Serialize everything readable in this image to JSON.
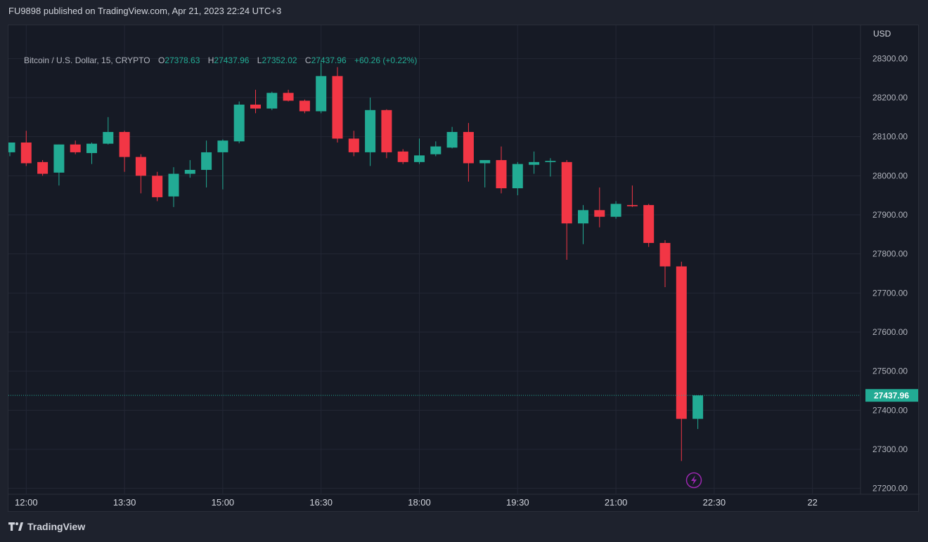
{
  "header": {
    "published": "FU9898 published on TradingView.com, Apr 21, 2023 22:24 UTC+3"
  },
  "legend": {
    "symbol": "Bitcoin / U.S. Dollar, 15, CRYPTO",
    "o_label": "O",
    "o_value": "27378.63",
    "h_label": "H",
    "h_value": "27437.96",
    "l_label": "L",
    "l_value": "27352.02",
    "c_label": "C",
    "c_value": "27437.96",
    "change": "+60.26 (+0.22%)"
  },
  "footer": {
    "brand": "TradingView",
    "logo_icon": "tradingview-logo-icon"
  },
  "colors": {
    "up": "#22ab94",
    "down": "#f23645",
    "lastPrice": "#22ab94",
    "grid": "#232735",
    "text": "#b2b5be"
  },
  "chart_data": {
    "type": "candlestick",
    "currency_label": "USD",
    "interval_minutes": 15,
    "x_start": "11:45",
    "x_ticks": [
      {
        "label": "12:00",
        "offset_bars": 1
      },
      {
        "label": "13:30",
        "offset_bars": 7
      },
      {
        "label": "15:00",
        "offset_bars": 13
      },
      {
        "label": "16:30",
        "offset_bars": 19
      },
      {
        "label": "18:00",
        "offset_bars": 25
      },
      {
        "label": "19:30",
        "offset_bars": 31
      },
      {
        "label": "21:00",
        "offset_bars": 37
      },
      {
        "label": "22:30",
        "offset_bars": 43
      },
      {
        "label": "22",
        "offset_bars": 49
      }
    ],
    "y_ticks": [
      27200,
      27300,
      27400,
      27500,
      27600,
      27700,
      27800,
      27900,
      28000,
      28100,
      28200,
      28300
    ],
    "ylim": [
      27185,
      28385
    ],
    "last_price": 27437.96,
    "last_price_label": "27437.96",
    "candles": [
      {
        "o": 28060,
        "h": 28085,
        "l": 28050,
        "c": 28085
      },
      {
        "o": 28085,
        "h": 28115,
        "l": 28025,
        "c": 28032
      },
      {
        "o": 28035,
        "h": 28040,
        "l": 28000,
        "c": 28005
      },
      {
        "o": 28008,
        "h": 28080,
        "l": 27975,
        "c": 28080
      },
      {
        "o": 28080,
        "h": 28090,
        "l": 28055,
        "c": 28060
      },
      {
        "o": 28058,
        "h": 28085,
        "l": 28030,
        "c": 28082
      },
      {
        "o": 28082,
        "h": 28150,
        "l": 28080,
        "c": 28112
      },
      {
        "o": 28112,
        "h": 28115,
        "l": 28010,
        "c": 28048
      },
      {
        "o": 28048,
        "h": 28055,
        "l": 27955,
        "c": 28000
      },
      {
        "o": 28000,
        "h": 28010,
        "l": 27935,
        "c": 27945
      },
      {
        "o": 27947,
        "h": 28022,
        "l": 27920,
        "c": 28005
      },
      {
        "o": 28005,
        "h": 28040,
        "l": 27995,
        "c": 28015
      },
      {
        "o": 28015,
        "h": 28090,
        "l": 27970,
        "c": 28060
      },
      {
        "o": 28060,
        "h": 28093,
        "l": 27965,
        "c": 28090
      },
      {
        "o": 28088,
        "h": 28190,
        "l": 28083,
        "c": 28182
      },
      {
        "o": 28182,
        "h": 28220,
        "l": 28160,
        "c": 28172
      },
      {
        "o": 28172,
        "h": 28215,
        "l": 28168,
        "c": 28212
      },
      {
        "o": 28212,
        "h": 28220,
        "l": 28190,
        "c": 28192
      },
      {
        "o": 28192,
        "h": 28195,
        "l": 28160,
        "c": 28165
      },
      {
        "o": 28165,
        "h": 28290,
        "l": 28160,
        "c": 28255
      },
      {
        "o": 28255,
        "h": 28278,
        "l": 28085,
        "c": 28095
      },
      {
        "o": 28095,
        "h": 28115,
        "l": 28050,
        "c": 28060
      },
      {
        "o": 28060,
        "h": 28200,
        "l": 28025,
        "c": 28168
      },
      {
        "o": 28168,
        "h": 28170,
        "l": 28045,
        "c": 28060
      },
      {
        "o": 28062,
        "h": 28068,
        "l": 28030,
        "c": 28035
      },
      {
        "o": 28035,
        "h": 28095,
        "l": 28030,
        "c": 28052
      },
      {
        "o": 28055,
        "h": 28088,
        "l": 28050,
        "c": 28075
      },
      {
        "o": 28072,
        "h": 28125,
        "l": 28070,
        "c": 28112
      },
      {
        "o": 28112,
        "h": 28135,
        "l": 27985,
        "c": 28032
      },
      {
        "o": 28032,
        "h": 28040,
        "l": 27970,
        "c": 28040
      },
      {
        "o": 28040,
        "h": 28075,
        "l": 27955,
        "c": 27968
      },
      {
        "o": 27968,
        "h": 28035,
        "l": 27950,
        "c": 28030
      },
      {
        "o": 28028,
        "h": 28062,
        "l": 28005,
        "c": 28035
      },
      {
        "o": 28035,
        "h": 28045,
        "l": 27998,
        "c": 28038
      },
      {
        "o": 28035,
        "h": 28040,
        "l": 27785,
        "c": 27878
      },
      {
        "o": 27878,
        "h": 27925,
        "l": 27825,
        "c": 27912
      },
      {
        "o": 27912,
        "h": 27970,
        "l": 27868,
        "c": 27895
      },
      {
        "o": 27895,
        "h": 27935,
        "l": 27890,
        "c": 27928
      },
      {
        "o": 27925,
        "h": 27975,
        "l": 27920,
        "c": 27922
      },
      {
        "o": 27925,
        "h": 27928,
        "l": 27818,
        "c": 27828
      },
      {
        "o": 27828,
        "h": 27835,
        "l": 27715,
        "c": 27768
      },
      {
        "o": 27768,
        "h": 27780,
        "l": 27270,
        "c": 27378
      },
      {
        "o": 27378,
        "h": 27438,
        "l": 27352,
        "c": 27438
      }
    ]
  }
}
